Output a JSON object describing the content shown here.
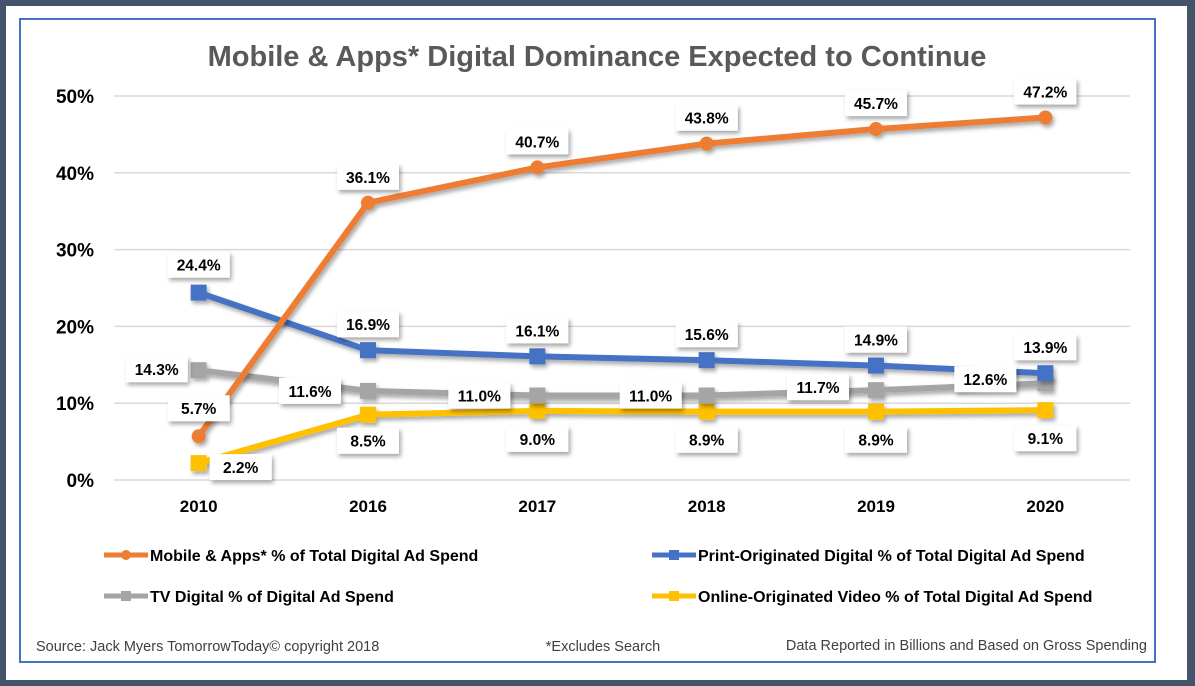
{
  "chart_data": {
    "type": "line",
    "title": "Mobile & Apps* Digital Dominance Expected to Continue",
    "xlabel": "",
    "ylabel": "",
    "categories": [
      "2010",
      "2016",
      "2017",
      "2018",
      "2019",
      "2020"
    ],
    "ylim": [
      0,
      50
    ],
    "yticks": [
      0,
      10,
      20,
      30,
      40,
      50
    ],
    "ytick_labels": [
      "0%",
      "10%",
      "20%",
      "30%",
      "40%",
      "50%"
    ],
    "grid": true,
    "legend_position": "bottom",
    "series": [
      {
        "name": "Mobile & Apps* % of Total Digital Ad Spend",
        "color": "#ed7d31",
        "marker": "circle",
        "values": [
          5.7,
          36.1,
          40.7,
          43.8,
          45.7,
          47.2
        ],
        "labels": [
          "5.7%",
          "36.1%",
          "40.7%",
          "43.8%",
          "45.7%",
          "47.2%"
        ]
      },
      {
        "name": "Print-Originated Digital % of Total Digital Ad Spend",
        "color": "#4472c4",
        "marker": "square",
        "values": [
          24.4,
          16.9,
          16.1,
          15.6,
          14.9,
          13.9
        ],
        "labels": [
          "24.4%",
          "16.9%",
          "16.1%",
          "15.6%",
          "14.9%",
          "13.9%"
        ]
      },
      {
        "name": "TV Digital % of Digital Ad Spend",
        "color": "#a5a5a5",
        "marker": "square",
        "values": [
          14.3,
          11.6,
          11.0,
          11.0,
          11.7,
          12.6
        ],
        "labels": [
          "14.3%",
          "11.6%",
          "11.0%",
          "11.0%",
          "11.7%",
          "12.6%"
        ]
      },
      {
        "name": "Online-Originated Video % of Total Digital Ad Spend",
        "color": "#ffc000",
        "marker": "square",
        "values": [
          2.2,
          8.5,
          9.0,
          8.9,
          8.9,
          9.1
        ],
        "labels": [
          "2.2%",
          "8.5%",
          "9.0%",
          "8.9%",
          "8.9%",
          "9.1%"
        ]
      }
    ],
    "annotations": [
      "Source: Jack Myers TomorrowToday© copyright 2018",
      "*Excludes Search",
      "Data Reported in Billions and Based on Gross Spending"
    ]
  },
  "footer": {
    "source": "Source: Jack Myers TomorrowToday© copyright 2018",
    "note": "*Excludes Search",
    "data_note": "Data Reported in Billions and Based on Gross Spending"
  }
}
